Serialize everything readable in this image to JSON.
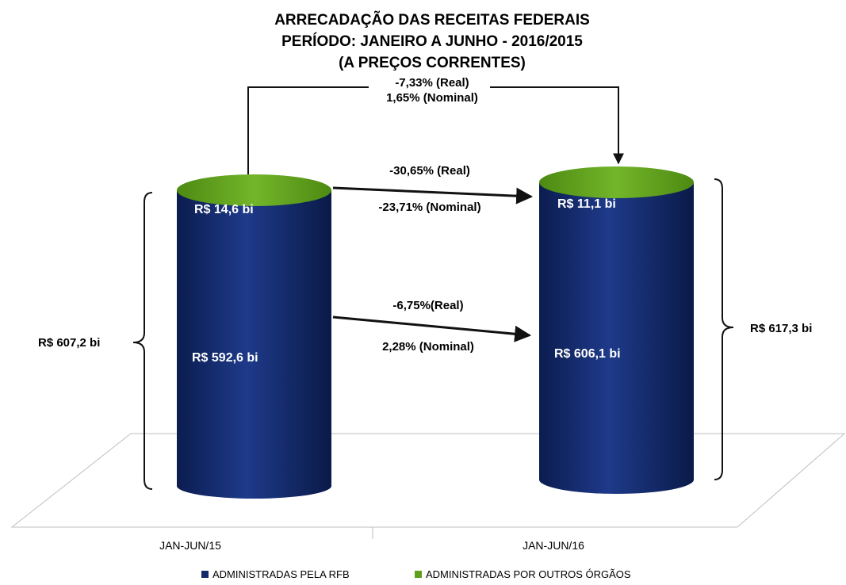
{
  "chart_data": {
    "type": "bar",
    "title": [
      "ARRECADAÇÃO DAS RECEITAS FEDERAIS",
      "PERÍODO: JANEIRO A JUNHO - 2016/2015",
      "(A PREÇOS CORRENTES)"
    ],
    "categories": [
      "JAN-JUN/15",
      "JAN-JUN/16"
    ],
    "series": [
      {
        "name": "ADMINISTRADAS PELA RFB",
        "values": [
          592.6,
          606.1
        ],
        "value_labels": [
          "R$ 592,6  bi",
          "R$ 606,1  bi"
        ],
        "color": "#13296b"
      },
      {
        "name": "ADMINISTRADAS POR OUTROS ÓRGÃOS",
        "values": [
          14.6,
          11.1
        ],
        "value_labels": [
          "R$ 14,6  bi",
          "R$ 11,1  bi"
        ],
        "color": "#5fa01a"
      }
    ],
    "totals": [
      607.2,
      617.3
    ],
    "total_labels": [
      "R$ 607,2  bi",
      "R$ 617,3  bi"
    ],
    "annotations": {
      "total_change": [
        "-7,33% (Real)",
        "1,65% (Nominal)"
      ],
      "other_change": [
        "-30,65% (Real)",
        "-23,71% (Nominal)"
      ],
      "rfb_change": [
        "-6,75%(Real)",
        "2,28% (Nominal)"
      ]
    },
    "legend_position": "bottom",
    "grid": false
  }
}
